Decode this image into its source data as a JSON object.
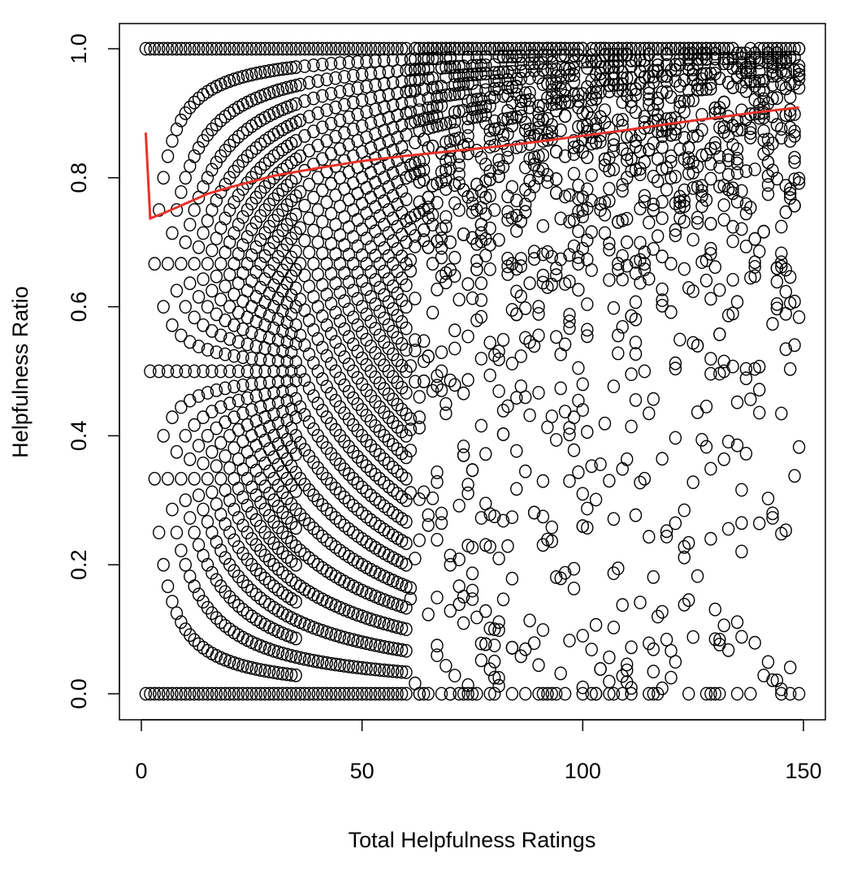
{
  "chart_data": {
    "type": "scatter",
    "title": "",
    "xlabel": "Total Helpfulness Ratings",
    "ylabel": "Helpfulness Ratio",
    "xlim": [
      0,
      150
    ],
    "ylim": [
      0,
      1
    ],
    "x_ticks": [
      0,
      50,
      100,
      150
    ],
    "x_tick_labels": [
      "0",
      "50",
      "100",
      "150"
    ],
    "y_ticks": [
      0,
      0.2,
      0.4,
      0.6,
      0.8,
      1.0
    ],
    "y_tick_labels": [
      "0.0",
      "0.2",
      "0.4",
      "0.6",
      "0.8",
      "1.0"
    ],
    "grid": false,
    "legend": "none",
    "marker": "open-circle",
    "point_color": "#000000",
    "trend_color": "#e8322a",
    "series": [
      {
        "kind": "points",
        "description_rule": "x = total ratings n, y = helpful / n for integer helpful counts",
        "x_range": [
          1,
          149
        ],
        "dense_up_to_x": 60,
        "sparse_after_x": 60,
        "counts_sparse_regime": "random fractions"
      },
      {
        "kind": "trend-line",
        "points": [
          [
            1,
            0.87
          ],
          [
            2,
            0.737
          ],
          [
            5,
            0.745
          ],
          [
            10,
            0.76
          ],
          [
            15,
            0.775
          ],
          [
            20,
            0.785
          ],
          [
            30,
            0.803
          ],
          [
            40,
            0.815
          ],
          [
            50,
            0.826
          ],
          [
            60,
            0.834
          ],
          [
            70,
            0.841
          ],
          [
            80,
            0.848
          ],
          [
            90,
            0.856
          ],
          [
            100,
            0.865
          ],
          [
            110,
            0.874
          ],
          [
            120,
            0.884
          ],
          [
            130,
            0.893
          ],
          [
            140,
            0.902
          ],
          [
            149,
            0.909
          ]
        ]
      }
    ]
  }
}
